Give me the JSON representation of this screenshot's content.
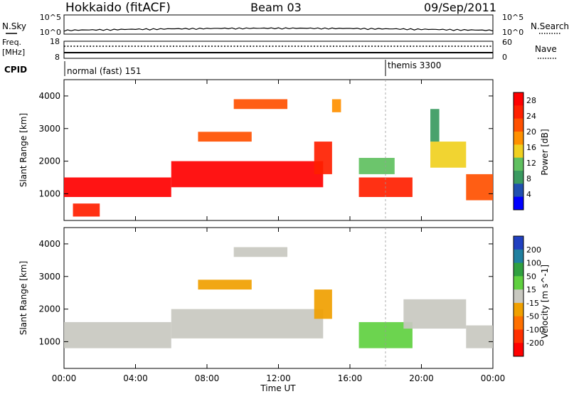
{
  "header": {
    "station": "Hokkaido (fitACF)",
    "beam": "Beam 03",
    "date": "09/Sep/2011"
  },
  "noise_panel": {
    "left_label": "N.Sky",
    "right_label": "N.Search",
    "ticks_left": [
      "10^5",
      "10^0"
    ],
    "ticks_right": [
      "10^5",
      "10^0"
    ]
  },
  "freq_panel": {
    "left_label_1": "Freq.",
    "left_label_2": "[MHz]",
    "ticks_left": [
      "18",
      "8"
    ],
    "right_label": "Nave",
    "ticks_right": [
      "60",
      "0"
    ]
  },
  "cpid_panel": {
    "label": "CPID",
    "modes": [
      {
        "name": "normal (fast) 151",
        "start_hour": 0
      },
      {
        "name": "themis 3300",
        "start_hour": 18
      }
    ]
  },
  "x_axis": {
    "title": "Time UT",
    "ticks": [
      "00:00",
      "04:00",
      "08:00",
      "12:00",
      "16:00",
      "20:00",
      "00:00"
    ],
    "range_hours": [
      0,
      24
    ]
  },
  "colors": {
    "power_scale": [
      "#0000ff",
      "#2050b0",
      "#3a9a60",
      "#60c060",
      "#f0d020",
      "#ff9000",
      "#ff5000",
      "#ff2000",
      "#ff0000"
    ],
    "velocity_scale": [
      "#2040c0",
      "#2080a0",
      "#30a040",
      "#60d040",
      "#c8c8c0",
      "#f0a000",
      "#ff7000",
      "#ff3000",
      "#ff0000"
    ]
  },
  "chart_data": [
    {
      "type": "heatmap",
      "title": "Power",
      "ylabel": "Slant Range [km]",
      "xlabel": "",
      "ylim": [
        180,
        4500
      ],
      "yticks": [
        "1000",
        "2000",
        "3000",
        "4000"
      ],
      "colorbar": {
        "label": "Power [dB]",
        "ticks": [
          "4",
          "8",
          "12",
          "16",
          "20",
          "24",
          "28"
        ],
        "range": [
          0,
          30
        ]
      },
      "regions": [
        {
          "x": [
            0,
            6
          ],
          "y": [
            900,
            1500
          ],
          "value": 28
        },
        {
          "x": [
            0.5,
            2
          ],
          "y": [
            300,
            700
          ],
          "value": 26
        },
        {
          "x": [
            6,
            14.5
          ],
          "y": [
            1200,
            2000
          ],
          "value": 27
        },
        {
          "x": [
            14,
            15
          ],
          "y": [
            1600,
            2600
          ],
          "value": 24
        },
        {
          "x": [
            7.5,
            10.5
          ],
          "y": [
            2600,
            2900
          ],
          "value": 20
        },
        {
          "x": [
            9.5,
            12.5
          ],
          "y": [
            3600,
            3900
          ],
          "value": 22
        },
        {
          "x": [
            15,
            15.5
          ],
          "y": [
            3500,
            3900
          ],
          "value": 18
        },
        {
          "x": [
            16.5,
            19.5
          ],
          "y": [
            900,
            1500
          ],
          "value": 24
        },
        {
          "x": [
            16.5,
            18.5
          ],
          "y": [
            1600,
            2100
          ],
          "value": 12
        },
        {
          "x": [
            20.5,
            22.5
          ],
          "y": [
            1800,
            2600
          ],
          "value": 16
        },
        {
          "x": [
            22.5,
            24
          ],
          "y": [
            800,
            1600
          ],
          "value": 22
        },
        {
          "x": [
            20.5,
            21
          ],
          "y": [
            2600,
            3600
          ],
          "value": 8
        }
      ]
    },
    {
      "type": "heatmap",
      "title": "Velocity",
      "ylabel": "Slant Range [km]",
      "xlabel": "Time UT",
      "ylim": [
        180,
        4500
      ],
      "yticks": [
        "1000",
        "2000",
        "3000",
        "4000"
      ],
      "colorbar": {
        "label": "Velocity [m s^-1]",
        "ticks": [
          "200",
          "100",
          "50",
          "15",
          "-15",
          "-50",
          "-100",
          "-200"
        ],
        "range": [
          -250,
          250
        ]
      },
      "regions": [
        {
          "x": [
            0,
            6
          ],
          "y": [
            800,
            1600
          ],
          "value": 0
        },
        {
          "x": [
            6,
            14.5
          ],
          "y": [
            1100,
            2000
          ],
          "value": 0
        },
        {
          "x": [
            7.5,
            10.5
          ],
          "y": [
            2600,
            2900
          ],
          "value": -50
        },
        {
          "x": [
            9.5,
            12.5
          ],
          "y": [
            3600,
            3900
          ],
          "value": 0
        },
        {
          "x": [
            14,
            15
          ],
          "y": [
            1700,
            2600
          ],
          "value": -60
        },
        {
          "x": [
            16.5,
            19.5
          ],
          "y": [
            800,
            1600
          ],
          "value": 60
        },
        {
          "x": [
            19,
            22.5
          ],
          "y": [
            1400,
            2300
          ],
          "value": 0
        },
        {
          "x": [
            22.5,
            24
          ],
          "y": [
            800,
            1500
          ],
          "value": 0
        }
      ]
    }
  ]
}
